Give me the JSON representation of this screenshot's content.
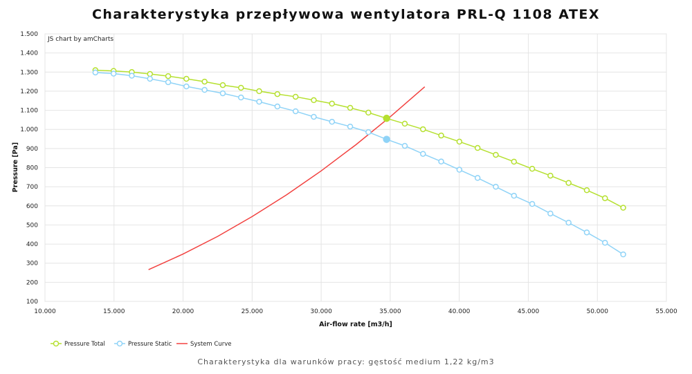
{
  "chart_data": {
    "type": "line",
    "title": "Charakterystyka przepływowa wentylatora PRL-Q 1108 ATEX",
    "subtitle": "Charakterystyka dla warunków pracy: gęstość medium 1,22 kg/m3",
    "credit": "JS chart by amCharts",
    "xlabel": "Air-flow rate [m3/h]",
    "ylabel": "Pressure [Pa]",
    "xlim": [
      10000,
      55000
    ],
    "ylim": [
      100,
      1500
    ],
    "xticks": [
      "10.000",
      "15.000",
      "20.000",
      "25.000",
      "30.000",
      "35.000",
      "40.000",
      "45.000",
      "50.000",
      "55.000"
    ],
    "yticks": [
      "100",
      "200",
      "300",
      "400",
      "500",
      "600",
      "700",
      "800",
      "900",
      "1.000",
      "1.100",
      "1.200",
      "1.300",
      "1.400",
      "1.500"
    ],
    "grid": true,
    "legend_position": "bottom-left",
    "x": [
      13650,
      14968,
      16286,
      17604,
      18922,
      20240,
      21558,
      22876,
      24194,
      25512,
      26830,
      28148,
      29466,
      30784,
      32102,
      33420,
      34738,
      36056,
      37374,
      38692,
      40010,
      41328,
      42646,
      43964,
      45282,
      46600,
      47918,
      49236,
      50554,
      51872
    ],
    "operating_point_index": 16,
    "series": [
      {
        "name": "Pressure Total",
        "color": "#b5e02f",
        "values": [
          1310,
          1306,
          1300,
          1290,
          1279,
          1265,
          1250,
          1232,
          1218,
          1200,
          1185,
          1171,
          1153,
          1135,
          1113,
          1088,
          1058,
          1030,
          1001,
          968,
          936,
          903,
          867,
          831,
          794,
          758,
          720,
          682,
          640,
          590
        ]
      },
      {
        "name": "Pressure Static",
        "color": "#8fd3f7",
        "values": [
          1298,
          1292,
          1281,
          1265,
          1247,
          1225,
          1207,
          1189,
          1167,
          1145,
          1120,
          1095,
          1066,
          1040,
          1015,
          986,
          948,
          914,
          872,
          832,
          789,
          746,
          700,
          653,
          610,
          560,
          512,
          461,
          407,
          346
        ]
      },
      {
        "name": "System Curve",
        "color": "#f2413f",
        "x": [
          17500,
          20000,
          22500,
          25000,
          27500,
          30000,
          32500,
          35000,
          37500
        ],
        "values": [
          266,
          348,
          440,
          544,
          658,
          783,
          919,
          1066,
          1223
        ]
      }
    ]
  }
}
